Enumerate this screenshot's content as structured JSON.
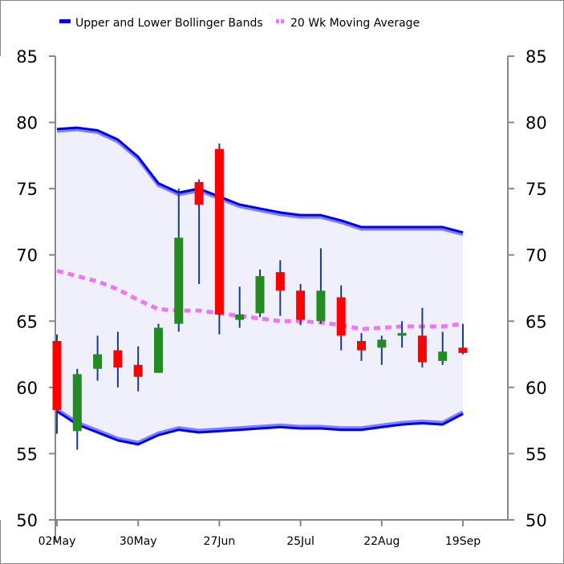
{
  "chart_data": {
    "type": "candlestick",
    "title": "",
    "xlabel": "",
    "ylabel": "",
    "ylim": [
      50,
      85
    ],
    "yticks": [
      "50",
      "55",
      "60",
      "65",
      "70",
      "75",
      "80",
      "85"
    ],
    "xticks": [
      {
        "label": "02May",
        "week": 0
      },
      {
        "label": "30May",
        "week": 4
      },
      {
        "label": "27Jun",
        "week": 8
      },
      {
        "label": "25Jul",
        "week": 12
      },
      {
        "label": "22Aug",
        "week": 16
      },
      {
        "label": "19Sep",
        "week": 20
      }
    ],
    "legend": {
      "placement": "top",
      "items": [
        {
          "label": "Upper and Lower Bollinger Bands",
          "color": "#0000ee",
          "style": "solid"
        },
        {
          "label": "20 Wk Moving Average",
          "color": "#ee44ee",
          "style": "dashed"
        }
      ]
    },
    "colors": {
      "up": "#228b22",
      "down": "#ff0000",
      "wick": "#1a3a8a",
      "band": "#0000ee",
      "band_fill": "#f0f0fc",
      "moving_average": "#ee77ee"
    },
    "candles": [
      {
        "week": 0,
        "open": 63.5,
        "high": 64.0,
        "low": 56.5,
        "close": 58.3
      },
      {
        "week": 1,
        "open": 56.7,
        "high": 61.4,
        "low": 55.3,
        "close": 61.0
      },
      {
        "week": 2,
        "open": 61.4,
        "high": 63.9,
        "low": 60.5,
        "close": 62.5
      },
      {
        "week": 3,
        "open": 62.8,
        "high": 64.2,
        "low": 60.0,
        "close": 61.5
      },
      {
        "week": 4,
        "open": 61.7,
        "high": 63.1,
        "low": 59.7,
        "close": 60.8
      },
      {
        "week": 5,
        "open": 61.1,
        "high": 64.8,
        "low": 61.1,
        "close": 64.5
      },
      {
        "week": 6,
        "open": 64.8,
        "high": 75.0,
        "low": 64.2,
        "close": 71.3
      },
      {
        "week": 7,
        "open": 75.5,
        "high": 75.7,
        "low": 67.8,
        "close": 73.8
      },
      {
        "week": 8,
        "open": 78.0,
        "high": 78.4,
        "low": 64.0,
        "close": 65.5
      },
      {
        "week": 9,
        "open": 65.1,
        "high": 67.6,
        "low": 64.5,
        "close": 65.5
      },
      {
        "week": 10,
        "open": 65.6,
        "high": 68.9,
        "low": 65.3,
        "close": 68.4
      },
      {
        "week": 11,
        "open": 68.7,
        "high": 69.6,
        "low": 65.4,
        "close": 67.3
      },
      {
        "week": 12,
        "open": 67.3,
        "high": 67.8,
        "low": 64.7,
        "close": 65.1
      },
      {
        "week": 13,
        "open": 65.0,
        "high": 70.5,
        "low": 64.8,
        "close": 67.3
      },
      {
        "week": 14,
        "open": 66.8,
        "high": 67.7,
        "low": 62.8,
        "close": 63.9
      },
      {
        "week": 15,
        "open": 63.5,
        "high": 64.1,
        "low": 62.0,
        "close": 62.8
      },
      {
        "week": 16,
        "open": 63.0,
        "high": 63.9,
        "low": 61.7,
        "close": 63.6
      },
      {
        "week": 17,
        "open": 63.9,
        "high": 65.0,
        "low": 63.0,
        "close": 64.1
      },
      {
        "week": 18,
        "open": 63.9,
        "high": 66.0,
        "low": 61.5,
        "close": 61.9
      },
      {
        "week": 19,
        "open": 62.0,
        "high": 64.2,
        "low": 61.7,
        "close": 62.7
      },
      {
        "week": 20,
        "open": 63.0,
        "high": 64.8,
        "low": 62.5,
        "close": 62.6
      }
    ],
    "upper_band": [
      79.5,
      79.6,
      79.4,
      78.7,
      77.4,
      75.4,
      74.7,
      75.0,
      74.4,
      73.8,
      73.5,
      73.2,
      73.0,
      73.0,
      72.6,
      72.1,
      72.1,
      72.1,
      72.1,
      72.1,
      71.7
    ],
    "lower_band": [
      58.2,
      57.2,
      56.6,
      56.0,
      55.7,
      56.4,
      56.8,
      56.6,
      56.7,
      56.8,
      56.9,
      57.0,
      56.9,
      56.9,
      56.8,
      56.8,
      57.0,
      57.2,
      57.3,
      57.2,
      58.0
    ],
    "moving_average": [
      68.8,
      68.4,
      68.0,
      67.4,
      66.6,
      65.9,
      65.8,
      65.8,
      65.6,
      65.4,
      65.2,
      65.0,
      65.0,
      64.9,
      64.7,
      64.4,
      64.5,
      64.6,
      64.6,
      64.6,
      64.8
    ]
  }
}
